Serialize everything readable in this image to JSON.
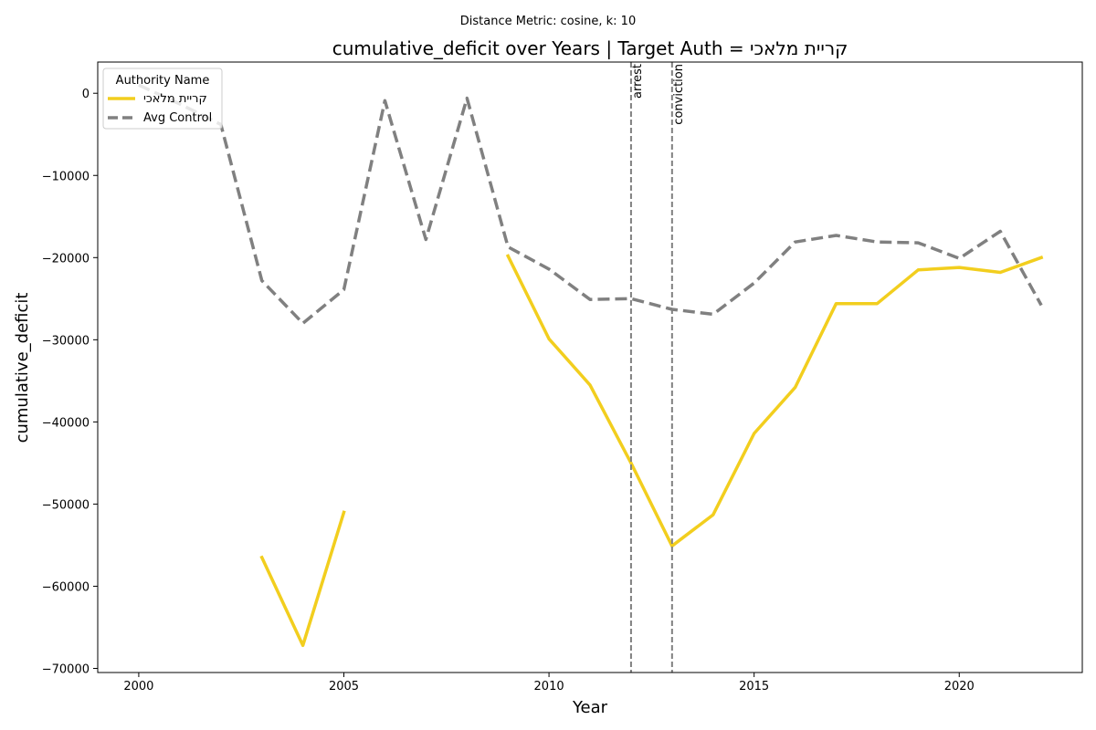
{
  "chart_data": {
    "type": "line",
    "suptitle": "Distance Metric: cosine, k: 10",
    "title": "cumulative_deficit over Years | Target Auth = קריית מלאכי",
    "xlabel": "Year",
    "ylabel": "cumulative_deficit",
    "xlim": [
      1999,
      2023
    ],
    "ylim": [
      -70500,
      3800
    ],
    "xticks": [
      2000,
      2005,
      2010,
      2015,
      2020
    ],
    "yticks": [
      0,
      -10000,
      -20000,
      -30000,
      -40000,
      -50000,
      -60000,
      -70000
    ],
    "ytick_labels": [
      "0",
      "−10000",
      "−20000",
      "−30000",
      "−40000",
      "−50000",
      "−60000",
      "−70000"
    ],
    "legend": {
      "title": "Authority Name",
      "position": "upper left",
      "entries": [
        "קריית מלאכי",
        "Avg Control"
      ]
    },
    "vlines": [
      {
        "x": 2012,
        "label": "arrest"
      },
      {
        "x": 2013,
        "label": "conviction"
      }
    ],
    "series": [
      {
        "name": "קריית מלאכי",
        "color": "#F2CE1E",
        "style": "solid",
        "segments": [
          {
            "x": [
              2003,
              2004,
              2005
            ],
            "y": [
              -56500,
              -67200,
              -51000
            ]
          },
          {
            "x": [
              2009,
              2010,
              2011,
              2012,
              2013,
              2014,
              2015,
              2016,
              2017,
              2018,
              2019,
              2020,
              2021,
              2022
            ],
            "y": [
              -19800,
              -29900,
              -35500,
              -45000,
              -55100,
              -51300,
              -41400,
              -35800,
              -25600,
              -25600,
              -21500,
              -21200,
              -21800,
              -20000
            ]
          }
        ]
      },
      {
        "name": "Avg Control",
        "color": "#808080",
        "style": "dashed",
        "segments": [
          {
            "x": [
              2000,
              2001,
              2002,
              2003,
              2004,
              2005,
              2006,
              2007,
              2008,
              2009,
              2010,
              2011,
              2012,
              2013,
              2014,
              2015,
              2016,
              2017,
              2018,
              2019,
              2020,
              2021,
              2022
            ],
            "y": [
              1000,
              -1300,
              -3800,
              -22800,
              -28000,
              -23900,
              -900,
              -17800,
              -600,
              -18700,
              -21400,
              -25100,
              -25000,
              -26300,
              -26900,
              -23100,
              -18100,
              -17300,
              -18100,
              -18200,
              -20100,
              -16800,
              -25800
            ]
          }
        ]
      }
    ]
  }
}
